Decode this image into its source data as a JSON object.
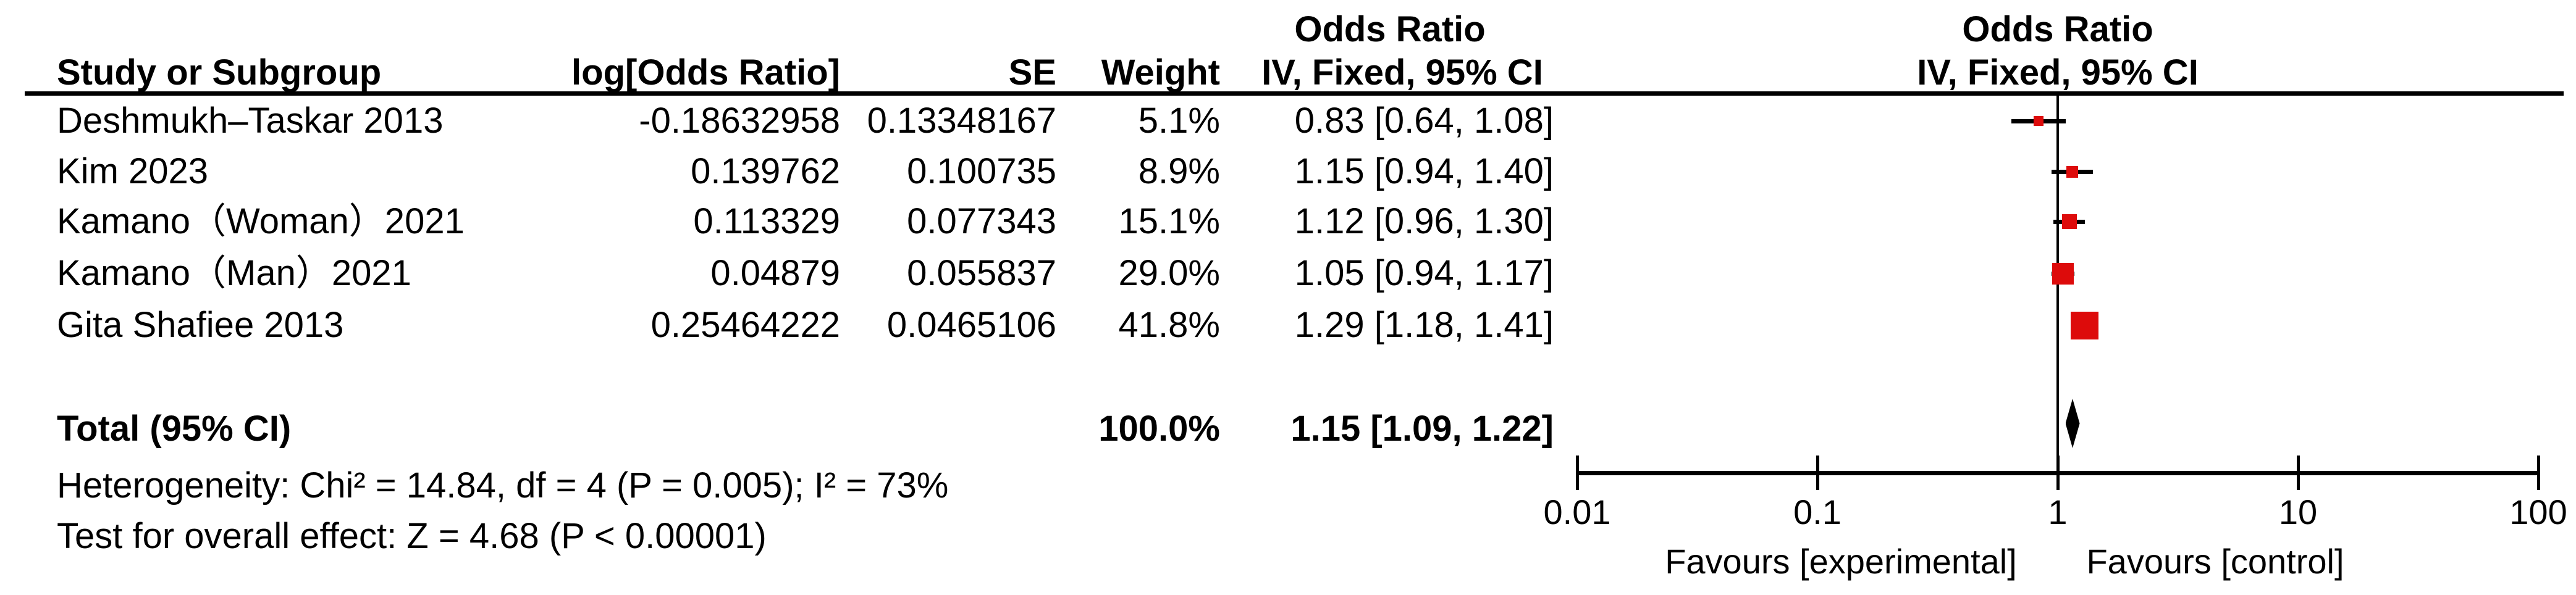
{
  "header": {
    "group_title_left": "Odds Ratio",
    "group_title_right": "Odds Ratio",
    "study": "Study or Subgroup",
    "log_or": "log[Odds Ratio]",
    "se": "SE",
    "weight": "Weight",
    "or_ci": "IV, Fixed, 95% CI",
    "plot_ci": "IV, Fixed, 95% CI"
  },
  "rows": [
    {
      "study": "Deshmukh–Taskar 2013",
      "log_or": "-0.18632958",
      "se": "0.13348167",
      "weight": "5.1%",
      "or_ci": "0.83 [0.64, 1.08]"
    },
    {
      "study": "Kim 2023",
      "log_or": "0.139762",
      "se": "0.100735",
      "weight": "8.9%",
      "or_ci": "1.15 [0.94, 1.40]"
    },
    {
      "study": "Kamano（Woman）2021",
      "log_or": "0.113329",
      "se": "0.077343",
      "weight": "15.1%",
      "or_ci": "1.12 [0.96, 1.30]"
    },
    {
      "study": "Kamano（Man）2021",
      "log_or": "0.04879",
      "se": "0.055837",
      "weight": "29.0%",
      "or_ci": "1.05 [0.94, 1.17]"
    },
    {
      "study": "Gita Shafiee 2013",
      "log_or": "0.25464222",
      "se": "0.0465106",
      "weight": "41.8%",
      "or_ci": "1.29 [1.18, 1.41]"
    }
  ],
  "total_row": {
    "label": "Total (95% CI)",
    "weight": "100.0%",
    "or_ci": "1.15 [1.09, 1.22]"
  },
  "footnotes": {
    "heterogeneity": "Heterogeneity: Chi² = 14.84, df = 4 (P = 0.005); I² = 73%",
    "overall_effect": "Test for overall effect: Z = 4.68 (P < 0.00001)"
  },
  "axis": {
    "tick_labels": [
      "0.01",
      "0.1",
      "1",
      "10",
      "100"
    ],
    "favours_left": "Favours [experimental]",
    "favours_right": "Favours [control]"
  },
  "colors": {
    "marker_red": "#dd0b0b",
    "line_black": "#000000"
  },
  "chart_data": {
    "type": "scatter",
    "subtype": "forest_plot_meta_analysis",
    "effect_measure": "Odds Ratio",
    "method": "IV, Fixed, 95% CI",
    "x_scale": "log10",
    "x_ticks": [
      0.01,
      0.1,
      1,
      10,
      100
    ],
    "xlim": [
      0.01,
      100
    ],
    "studies": [
      {
        "name": "Deshmukh–Taskar 2013",
        "log_or": -0.18632958,
        "se": 0.13348167,
        "weight_pct": 5.1,
        "or": 0.83,
        "ci_low": 0.64,
        "ci_high": 1.08
      },
      {
        "name": "Kim 2023",
        "log_or": 0.139762,
        "se": 0.100735,
        "weight_pct": 8.9,
        "or": 1.15,
        "ci_low": 0.94,
        "ci_high": 1.4
      },
      {
        "name": "Kamano（Woman）2021",
        "log_or": 0.113329,
        "se": 0.077343,
        "weight_pct": 15.1,
        "or": 1.12,
        "ci_low": 0.96,
        "ci_high": 1.3
      },
      {
        "name": "Kamano（Man）2021",
        "log_or": 0.04879,
        "se": 0.055837,
        "weight_pct": 29.0,
        "or": 1.05,
        "ci_low": 0.94,
        "ci_high": 1.17
      },
      {
        "name": "Gita Shafiee 2013",
        "log_or": 0.25464222,
        "se": 0.0465106,
        "weight_pct": 41.8,
        "or": 1.29,
        "ci_low": 1.18,
        "ci_high": 1.41
      }
    ],
    "total": {
      "name": "Total (95% CI)",
      "weight_pct": 100.0,
      "or": 1.15,
      "ci_low": 1.09,
      "ci_high": 1.22
    },
    "heterogeneity": {
      "chi2": 14.84,
      "df": 4,
      "p": 0.005,
      "i2_pct": 73
    },
    "overall_effect": {
      "z": 4.68,
      "p": "< 0.00001"
    },
    "favours_left": "Favours [experimental]",
    "favours_right": "Favours [control]"
  }
}
